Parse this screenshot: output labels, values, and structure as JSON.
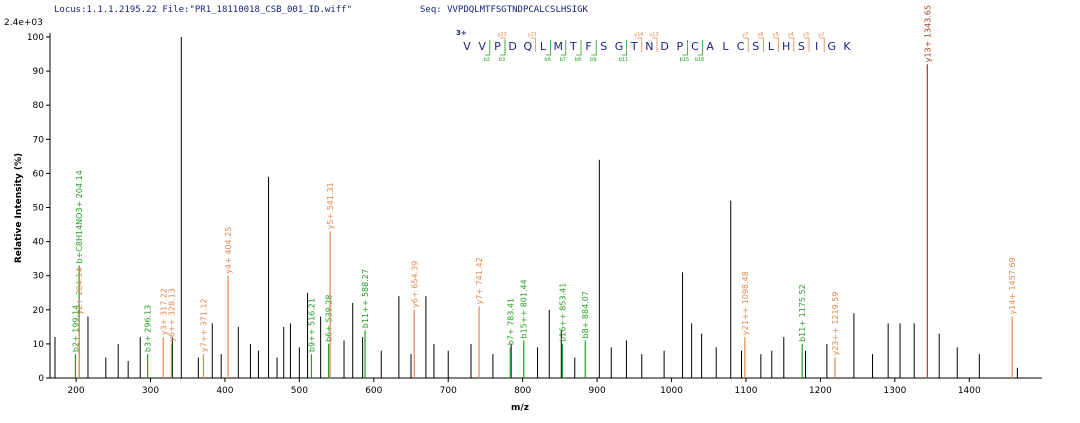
{
  "chart_data": {
    "type": "spectrum",
    "locus": "Locus:1.1.1.2195.22 File:\"PR1_18110018_CSB_001_ID.wiff\"",
    "seq": "Seq: VVPDQLMTFSGTNDPCALCSLHSIGK",
    "y_multiplier": "2.4e+03",
    "charge": "3+",
    "ylabel": "Relative Intensity (%)",
    "xlabel": "m/z",
    "xlim": [
      165,
      1495
    ],
    "ylim": [
      0,
      100
    ],
    "xticks": [
      200,
      300,
      400,
      500,
      600,
      700,
      800,
      900,
      1000,
      1100,
      1200,
      1300,
      1400
    ],
    "yticks": [
      0,
      10,
      20,
      30,
      40,
      50,
      60,
      70,
      80,
      90,
      100
    ],
    "color": "#000000",
    "x": [
      171.7,
      216,
      256.6,
      286.2,
      329.3,
      341.4,
      364.3,
      383,
      418,
      434.3,
      458.6,
      479,
      488,
      511,
      528.6,
      571.7,
      585,
      633.7,
      670,
      680.8,
      730.6,
      784.5,
      835.7,
      851.9,
      903,
      919,
      939.4,
      1014.8,
      1027,
      1040.4,
      1079.5,
      1094,
      1134.7,
      1150.8,
      1208.7,
      1245,
      1291,
      1307,
      1326,
      1359.6,
      1383.8,
      1413.5,
      1464.6,
      240,
      270,
      395,
      445,
      470,
      500,
      560,
      610,
      650,
      700,
      760,
      820,
      870,
      960,
      990,
      1060,
      1120,
      1180,
      1270
    ],
    "values": [
      12,
      18,
      10,
      12,
      12,
      100,
      6,
      16,
      15,
      10,
      59,
      15,
      16,
      25,
      18,
      22,
      12,
      24,
      24,
      10,
      10,
      10,
      20,
      14,
      64,
      9,
      11,
      31,
      16,
      13,
      52,
      8,
      8,
      12,
      10,
      19,
      16,
      16,
      16,
      13,
      9,
      7,
      3,
      6,
      5,
      7,
      8,
      6,
      9,
      11,
      8,
      7,
      8,
      7,
      9,
      6,
      7,
      8,
      9,
      7,
      8,
      7
    ],
    "annotations": {
      "x": [
        199.14,
        204.14,
        204.14,
        296.13,
        317.22,
        328.13,
        371.12,
        404.25,
        516.21,
        539.28,
        541.31,
        588.27,
        654.39,
        741.42,
        783.41,
        801.44,
        853.41,
        884.07,
        1098.48,
        1175.52,
        1219.59,
        1343.65,
        1457.69
      ],
      "values": [
        7,
        33,
        18,
        7,
        12,
        10,
        7,
        30,
        7,
        10,
        43,
        14,
        20,
        21,
        9,
        11,
        10,
        11,
        12,
        10,
        6,
        92,
        18
      ],
      "labels": [
        "b2+ 199.14",
        "b+C8H14NO3+ 204.14",
        "y2+ 204.14",
        "b3+ 296.13",
        "y3+ 317.22",
        "y6++ 328.13",
        "y7++ 371.12",
        "y4+ 404.25",
        "b9++ 516.21",
        "b6+ 539.28",
        "y5+ 541.31",
        "b11++ 588.27",
        "y6+ 654.39",
        "y7+ 741.42",
        "b7+ 783.41",
        "b15++ 801.44",
        "b16++ 853.41",
        "b8+ 884.07",
        "y21++ 1098.48",
        "b11+ 1175.52",
        "y23++ 1219.59",
        "y13+ 1343.65",
        "y14+ 1457.69"
      ],
      "colors": [
        "#22a022",
        "#22a022",
        "#e08a50",
        "#22a022",
        "#e08a50",
        "#e08a50",
        "#e08a50",
        "#e08a50",
        "#22a022",
        "#22a022",
        "#e08a50",
        "#22a022",
        "#e08a50",
        "#e08a50",
        "#22a022",
        "#22a022",
        "#22a022",
        "#22a022",
        "#e08a50",
        "#22a022",
        "#e08a50",
        "#a0401e",
        "#e08a50"
      ]
    },
    "sequence": [
      "V",
      "V",
      "P",
      "D",
      "Q",
      "L",
      "M",
      "T",
      "F",
      "S",
      "G",
      "T",
      "N",
      "D",
      "P",
      "C",
      "A",
      "L",
      "C",
      "S",
      "L",
      "H",
      "S",
      "I",
      "G",
      "K"
    ],
    "y_marks": {
      "after": [
        2,
        4,
        11,
        12,
        18,
        19,
        20,
        21,
        22,
        23
      ],
      "labels": [
        "y23",
        "y21",
        "y14",
        "y13",
        "y7",
        "y6",
        "y5",
        "y4",
        "y3",
        "y2"
      ]
    },
    "b_marks": {
      "after": [
        1,
        2,
        5,
        6,
        7,
        8,
        10,
        14,
        15
      ],
      "labels": [
        "b2",
        "b3",
        "b6",
        "b7",
        "b8",
        "b9",
        "b11",
        "b15",
        "b16"
      ]
    }
  }
}
